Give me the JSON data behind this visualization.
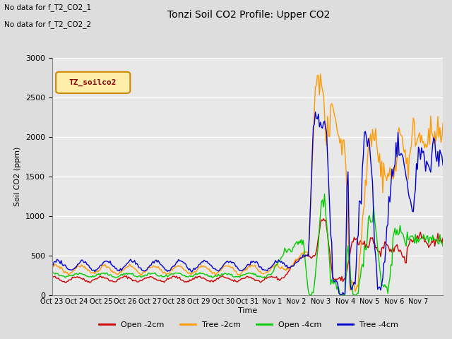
{
  "title": "Tonzi Soil CO2 Profile: Upper CO2",
  "ylabel": "Soil CO2 (ppm)",
  "xlabel": "Time",
  "annotations": [
    "No data for f_T2_CO2_1",
    "No data for f_T2_CO2_2"
  ],
  "legend_label": "TZ_soilco2",
  "ylim": [
    0,
    3000
  ],
  "yticks": [
    0,
    500,
    1000,
    1500,
    2000,
    2500,
    3000
  ],
  "series_labels": [
    "Open -2cm",
    "Tree -2cm",
    "Open -4cm",
    "Tree -4cm"
  ],
  "series_colors": [
    "#cc0000",
    "#ff9900",
    "#00cc00",
    "#0000cc"
  ],
  "background_color": "#dddddd",
  "plot_bg_color": "#e8e8e8",
  "grid_color": "#ffffff",
  "x_tick_labels": [
    "Oct 23",
    "Oct 24",
    "Oct 25",
    "Oct 26",
    "Oct 27",
    "Oct 28",
    "Oct 29",
    "Oct 30",
    "Oct 31",
    "Nov 1",
    "Nov 2",
    "Nov 3",
    "Nov 4",
    "Nov 5",
    "Nov 6",
    "Nov 7"
  ],
  "n_days": 16,
  "figsize": [
    6.4,
    4.8
  ],
  "dpi": 100
}
